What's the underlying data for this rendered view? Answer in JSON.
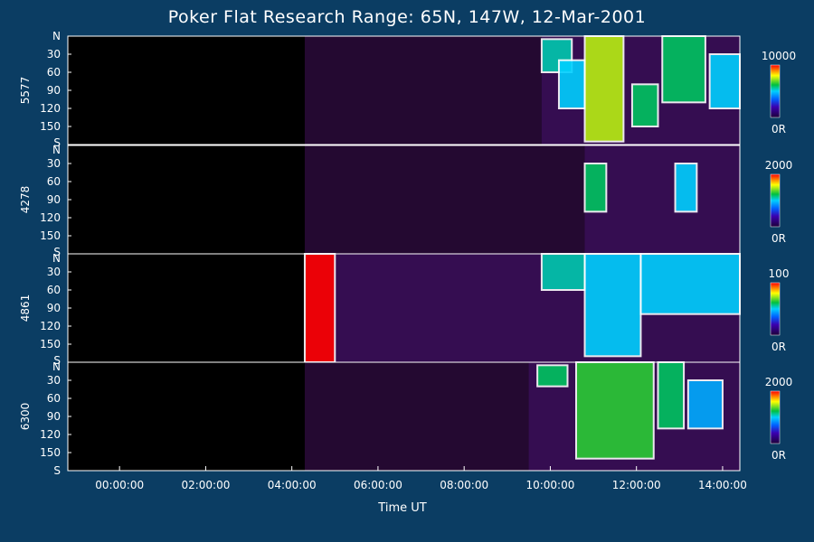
{
  "chart_data": {
    "type": "heatmap",
    "title": "Poker Flat Research Range: 65N, 147W, 12-Mar-2001",
    "xlabel": "Time UT",
    "x_ticks": [
      "00:00:00",
      "02:00:00",
      "04:00:00",
      "06:00:00",
      "08:00:00",
      "10:00:00",
      "12:00:00",
      "14:00:00"
    ],
    "x_tick_hours": [
      0,
      2,
      4,
      6,
      8,
      10,
      12,
      14
    ],
    "xlim_hours": [
      -1.2,
      14.4
    ],
    "y_ticks": [
      "N",
      "30",
      "60",
      "90",
      "120",
      "150",
      "S"
    ],
    "y_tick_values": [
      0,
      30,
      60,
      90,
      120,
      150,
      180
    ],
    "ylim": [
      0,
      180
    ],
    "panels": [
      {
        "wavelength": "5577",
        "scale_max": "10000",
        "scale_min": "0R",
        "data_start_hour": 4.3,
        "active_start_hour": 9.8,
        "regions": [
          {
            "t0": 9.8,
            "t1": 10.5,
            "y0": 5,
            "y1": 60,
            "level": 0.55
          },
          {
            "t0": 10.2,
            "t1": 10.8,
            "y0": 40,
            "y1": 120,
            "level": 0.5
          },
          {
            "t0": 10.8,
            "t1": 11.7,
            "y0": 0,
            "y1": 175,
            "level": 0.75
          },
          {
            "t0": 11.9,
            "t1": 12.5,
            "y0": 80,
            "y1": 150,
            "level": 0.6
          },
          {
            "t0": 12.6,
            "t1": 13.6,
            "y0": 0,
            "y1": 110,
            "level": 0.6
          },
          {
            "t0": 13.7,
            "t1": 14.4,
            "y0": 30,
            "y1": 120,
            "level": 0.5
          }
        ]
      },
      {
        "wavelength": "4278",
        "scale_max": "2000",
        "scale_min": "0R",
        "data_start_hour": 4.3,
        "active_start_hour": 10.8,
        "regions": [
          {
            "t0": 10.8,
            "t1": 11.3,
            "y0": 30,
            "y1": 110,
            "level": 0.6
          },
          {
            "t0": 12.9,
            "t1": 13.4,
            "y0": 30,
            "y1": 110,
            "level": 0.5
          }
        ]
      },
      {
        "wavelength": "4861",
        "scale_max": "100",
        "scale_min": "0R",
        "data_start_hour": 4.3,
        "active_start_hour": 4.3,
        "regions": [
          {
            "t0": 4.3,
            "t1": 5.0,
            "y0": 0,
            "y1": 180,
            "level": 1.0
          },
          {
            "t0": 9.8,
            "t1": 10.8,
            "y0": 0,
            "y1": 60,
            "level": 0.55
          },
          {
            "t0": 10.8,
            "t1": 12.1,
            "y0": 0,
            "y1": 170,
            "level": 0.5
          },
          {
            "t0": 12.1,
            "t1": 14.4,
            "y0": 0,
            "y1": 100,
            "level": 0.5
          }
        ]
      },
      {
        "wavelength": "6300",
        "scale_max": "2000",
        "scale_min": "0R",
        "data_start_hour": 4.3,
        "active_start_hour": 9.5,
        "regions": [
          {
            "t0": 9.7,
            "t1": 10.4,
            "y0": 5,
            "y1": 40,
            "level": 0.6
          },
          {
            "t0": 10.6,
            "t1": 12.4,
            "y0": 0,
            "y1": 160,
            "level": 0.65
          },
          {
            "t0": 12.5,
            "t1": 13.1,
            "y0": 0,
            "y1": 110,
            "level": 0.6
          },
          {
            "t0": 13.2,
            "t1": 14.0,
            "y0": 30,
            "y1": 110,
            "level": 0.45
          }
        ]
      }
    ]
  }
}
